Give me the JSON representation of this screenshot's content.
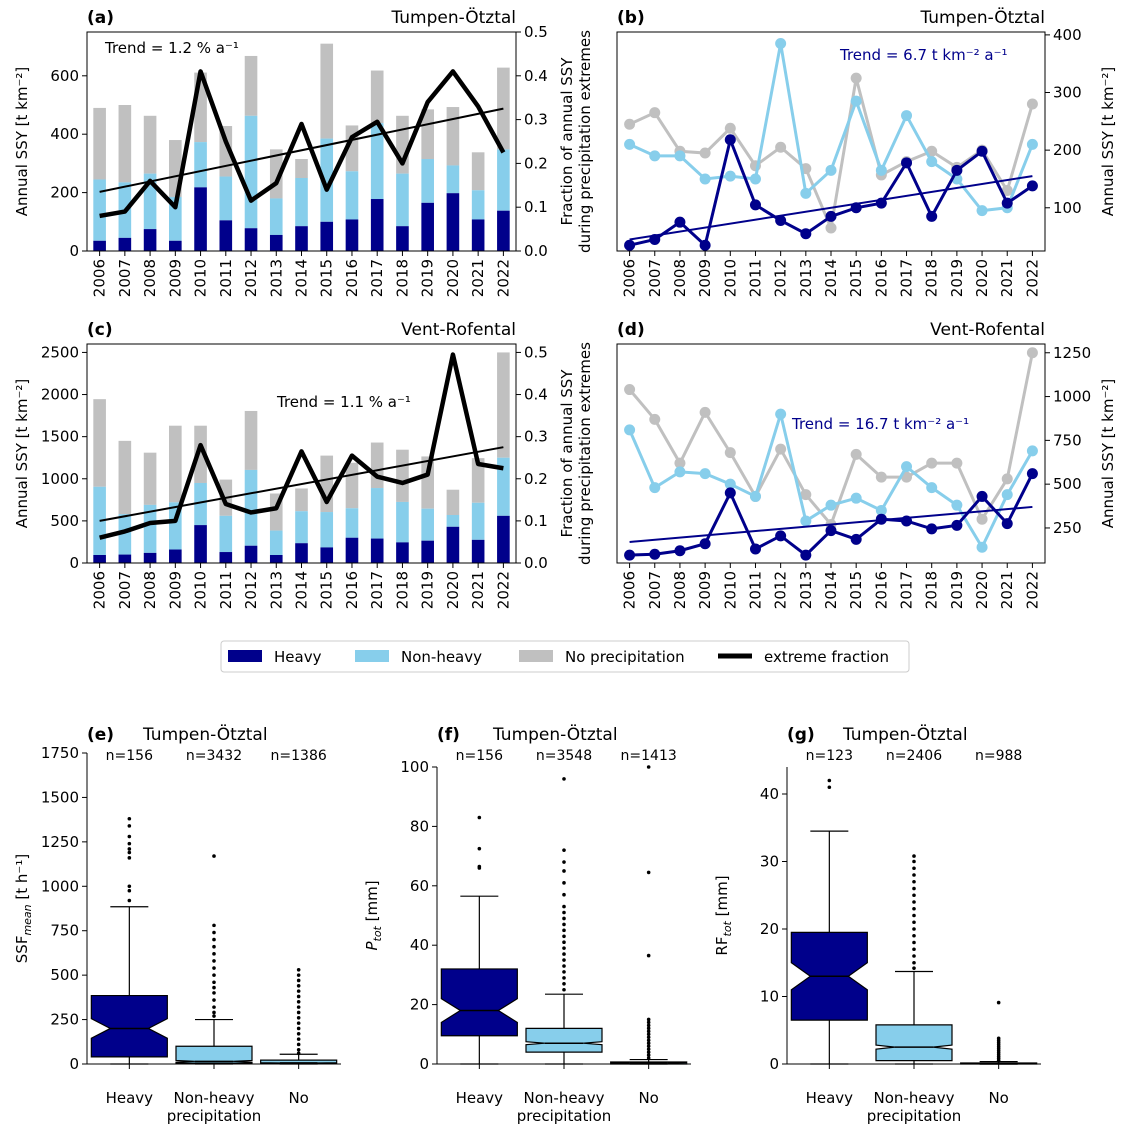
{
  "colors": {
    "heavy": "#00008b",
    "nonheavy": "#87ceeb",
    "noprecip": "#c0c0c0",
    "extreme": "#000000"
  },
  "years": [
    "2006",
    "2007",
    "2008",
    "2009",
    "2010",
    "2011",
    "2012",
    "2013",
    "2014",
    "2015",
    "2016",
    "2017",
    "2018",
    "2019",
    "2020",
    "2021",
    "2022"
  ],
  "legend": [
    {
      "label": "Heavy",
      "color": "#00008b",
      "kind": "patch"
    },
    {
      "label": "Non-heavy",
      "color": "#87ceeb",
      "kind": "patch"
    },
    {
      "label": "No precipitation",
      "color": "#c0c0c0",
      "kind": "patch"
    },
    {
      "label": "extreme fraction",
      "color": "#000000",
      "kind": "line"
    }
  ],
  "chart_data": [
    {
      "panel": "(a)",
      "title": "Tumpen-Ötztal",
      "type": "bar",
      "ylabel": "Annual SSY [t km⁻²]",
      "ylim": [
        0,
        750
      ],
      "yticks": [
        0,
        200,
        400,
        600
      ],
      "y2label_top": "Fraction of annual SSY",
      "y2label_bottom": "during precipitation extremes",
      "y2lim": [
        0,
        0.5
      ],
      "y2ticks": [
        "0.0",
        "0.1",
        "0.2",
        "0.3",
        "0.4",
        "0.5"
      ],
      "trend_text": "Trend = 1.2 % a⁻¹",
      "heavy": [
        35,
        45,
        75,
        35,
        218,
        105,
        78,
        55,
        85,
        100,
        108,
        178,
        85,
        165,
        198,
        108,
        138
      ],
      "nonheavy": [
        210,
        190,
        190,
        150,
        155,
        150,
        385,
        125,
        165,
        285,
        165,
        260,
        180,
        150,
        95,
        100,
        210
      ],
      "noprecip": [
        245,
        265,
        198,
        195,
        238,
        173,
        205,
        168,
        65,
        325,
        157,
        180,
        198,
        170,
        200,
        130,
        280
      ],
      "extreme_fraction": [
        0.08,
        0.09,
        0.16,
        0.1,
        0.41,
        0.25,
        0.115,
        0.155,
        0.29,
        0.14,
        0.26,
        0.295,
        0.2,
        0.34,
        0.41,
        0.33,
        0.225
      ],
      "trend_line": [
        0.135,
        0.325
      ]
    },
    {
      "panel": "(b)",
      "title": "Tumpen-Ötztal",
      "type": "line",
      "ylabel": "Annual SSY [t km⁻²]",
      "ylim": [
        25,
        405
      ],
      "yticks": [
        100,
        200,
        300,
        400
      ],
      "trend_text": "Trend = 6.7 t km⁻² a⁻¹",
      "heavy": [
        35,
        45,
        75,
        35,
        218,
        105,
        78,
        55,
        85,
        100,
        108,
        178,
        85,
        165,
        198,
        108,
        138
      ],
      "nonheavy": [
        210,
        190,
        190,
        150,
        155,
        150,
        385,
        125,
        165,
        285,
        165,
        260,
        180,
        150,
        95,
        100,
        210
      ],
      "noprecip": [
        245,
        265,
        198,
        195,
        238,
        173,
        205,
        168,
        65,
        325,
        157,
        180,
        198,
        170,
        200,
        130,
        280
      ],
      "trend_line": [
        45,
        155
      ]
    },
    {
      "panel": "(c)",
      "title": "Vent-Rofental",
      "type": "bar",
      "ylabel": "Annual SSY [t km⁻²]",
      "ylim": [
        0,
        2600
      ],
      "yticks": [
        0,
        500,
        1000,
        1500,
        2000,
        2500
      ],
      "y2label_top": "Fraction of annual SSY",
      "y2label_bottom": "during precipitation extremes",
      "y2lim": [
        0,
        0.52
      ],
      "y2ticks": [
        "0.0",
        "0.1",
        "0.2",
        "0.3",
        "0.4",
        "0.5"
      ],
      "trend_text": "Trend = 1.1 % a⁻¹",
      "heavy": [
        95,
        100,
        120,
        160,
        450,
        130,
        205,
        95,
        235,
        185,
        300,
        290,
        245,
        265,
        430,
        275,
        560
      ],
      "nonheavy": [
        810,
        480,
        570,
        560,
        500,
        430,
        900,
        290,
        380,
        420,
        350,
        600,
        480,
        380,
        140,
        440,
        690
      ],
      "noprecip": [
        1040,
        870,
        620,
        910,
        680,
        430,
        700,
        440,
        270,
        670,
        540,
        540,
        620,
        620,
        300,
        530,
        1250
      ],
      "extreme_fraction": [
        0.06,
        0.075,
        0.095,
        0.1,
        0.28,
        0.14,
        0.12,
        0.13,
        0.265,
        0.145,
        0.255,
        0.205,
        0.19,
        0.21,
        0.495,
        0.235,
        0.225
      ],
      "trend_line": [
        0.1,
        0.275
      ]
    },
    {
      "panel": "(d)",
      "title": "Vent-Rofental",
      "type": "line",
      "ylabel": "Annual SSY [t km⁻²]",
      "ylim": [
        50,
        1300
      ],
      "yticks": [
        250,
        500,
        750,
        1000,
        1250
      ],
      "trend_text": "Trend = 16.7 t km⁻² a⁻¹",
      "heavy": [
        95,
        100,
        120,
        160,
        450,
        130,
        205,
        95,
        235,
        185,
        300,
        290,
        245,
        265,
        430,
        275,
        560
      ],
      "nonheavy": [
        810,
        480,
        570,
        560,
        500,
        430,
        900,
        290,
        380,
        420,
        350,
        600,
        480,
        380,
        140,
        440,
        690
      ],
      "noprecip": [
        1040,
        870,
        620,
        910,
        680,
        430,
        700,
        440,
        270,
        670,
        540,
        540,
        620,
        620,
        300,
        530,
        1250
      ],
      "trend_line": [
        170,
        370
      ]
    },
    {
      "panel": "(e)",
      "title": "Tumpen-Ötztal",
      "type": "box",
      "ylabel_main": "SSF",
      "ylabel_sub": "mean",
      "ylabel_unit": " [t h⁻¹]",
      "ylim": [
        0,
        1750
      ],
      "yticks": [
        0,
        250,
        500,
        750,
        1000,
        1250,
        1500,
        1750
      ],
      "categories": [
        "Heavy",
        "Non-heavy",
        "No"
      ],
      "category_sub": [
        "",
        "precipitation",
        ""
      ],
      "n_labels": [
        "n=156",
        "n=3432",
        "n=1386"
      ],
      "boxes": [
        {
          "whislo": 0,
          "q1": 40,
          "med": 200,
          "q3": 385,
          "whishi": 885,
          "notch": [
            145,
            255
          ],
          "fill": "#00008b",
          "medcolor": "#000000",
          "fliers": [
            920,
            975,
            1000,
            1160,
            1190,
            1210,
            1240,
            1280,
            1340,
            1380
          ]
        },
        {
          "whislo": 0,
          "q1": 5,
          "med": 15,
          "q3": 100,
          "whishi": 250,
          "notch": [
            10,
            20
          ],
          "fill": "#87ceeb",
          "medcolor": "#000000",
          "fliers": [
            270,
            290,
            320,
            360,
            400,
            430,
            460,
            500,
            540,
            580,
            620,
            660,
            700,
            740,
            780,
            1170
          ]
        },
        {
          "whislo": 0,
          "q1": 2,
          "med": 6,
          "q3": 22,
          "whishi": 55,
          "notch": [
            5,
            7
          ],
          "fill": "#87ceeb",
          "medcolor": "#000000",
          "fliers": [
            60,
            80,
            110,
            140,
            170,
            200,
            230,
            260,
            290,
            320,
            350,
            380,
            410,
            440,
            470,
            500,
            530
          ]
        }
      ]
    },
    {
      "panel": "(f)",
      "title": "Tumpen-Ötztal",
      "type": "box",
      "ylabel_main": "P",
      "ylabel_sub": "tot",
      "ylabel_unit": " [mm]",
      "ylim": [
        0,
        100
      ],
      "yticks": [
        0,
        20,
        40,
        60,
        80,
        100
      ],
      "categories": [
        "Heavy",
        "Non-heavy",
        "No"
      ],
      "category_sub": [
        "",
        "precipitation",
        ""
      ],
      "n_labels": [
        "n=156",
        "n=3548",
        "n=1413"
      ],
      "boxes": [
        {
          "whislo": 0,
          "q1": 9.5,
          "med": 18,
          "q3": 32,
          "whishi": 56.5,
          "notch": [
            14,
            22
          ],
          "fill": "#00008b",
          "medcolor": "#000000",
          "fliers": [
            66,
            66.5,
            72.5,
            83
          ]
        },
        {
          "whislo": 0,
          "q1": 4,
          "med": 7,
          "q3": 12,
          "whishi": 23.5,
          "notch": [
            6.5,
            7.5
          ],
          "fill": "#87ceeb",
          "medcolor": "#000000",
          "fliers": [
            25,
            27,
            29,
            31,
            33,
            35,
            37,
            39,
            41,
            43,
            45,
            47,
            49,
            51,
            53,
            57,
            61,
            65,
            68,
            72,
            96
          ]
        },
        {
          "whislo": 0,
          "q1": 0,
          "med": 0.3,
          "q3": 0.7,
          "whishi": 1.5,
          "notch": [
            0.25,
            0.35
          ],
          "fill": "#87ceeb",
          "medcolor": "#000000",
          "fliers": [
            2,
            3,
            4,
            5,
            6,
            7,
            8,
            9,
            10,
            11,
            12,
            13,
            14,
            15,
            36.5,
            64.5,
            100
          ]
        }
      ]
    },
    {
      "panel": "(g)",
      "title": "Tumpen-Ötztal",
      "type": "box",
      "ylabel_main": "RF",
      "ylabel_sub": "tot",
      "ylabel_unit": " [mm]",
      "ylim": [
        0,
        44
      ],
      "yticks": [
        0,
        10,
        20,
        30,
        40
      ],
      "categories": [
        "Heavy",
        "Non-heavy",
        "No"
      ],
      "category_sub": [
        "",
        "precipitation",
        ""
      ],
      "n_labels": [
        "n=123",
        "n=2406",
        "n=988"
      ],
      "boxes": [
        {
          "whislo": 0,
          "q1": 6.5,
          "med": 13,
          "q3": 19.5,
          "whishi": 34.5,
          "notch": [
            11,
            15
          ],
          "fill": "#00008b",
          "medcolor": "#000000",
          "fliers": [
            41,
            42
          ]
        },
        {
          "whislo": 0,
          "q1": 0.5,
          "med": 2.5,
          "q3": 5.8,
          "whishi": 13.7,
          "notch": [
            2.2,
            2.8
          ],
          "fill": "#87ceeb",
          "medcolor": "#000000",
          "fliers": [
            14.2,
            15,
            16,
            17,
            18,
            19,
            20,
            21,
            22,
            23,
            24,
            25,
            26,
            27,
            28,
            29,
            30,
            30.8
          ]
        },
        {
          "whislo": 0,
          "q1": 0,
          "med": 0.02,
          "q3": 0.15,
          "whishi": 0.35,
          "notch": [
            0.01,
            0.03
          ],
          "fill": "#87ceeb",
          "medcolor": "#000000",
          "fliers": [
            0.5,
            0.8,
            1.1,
            1.4,
            1.7,
            2.0,
            2.3,
            2.6,
            2.9,
            3.2,
            3.5,
            3.8,
            9.1
          ]
        }
      ]
    }
  ]
}
